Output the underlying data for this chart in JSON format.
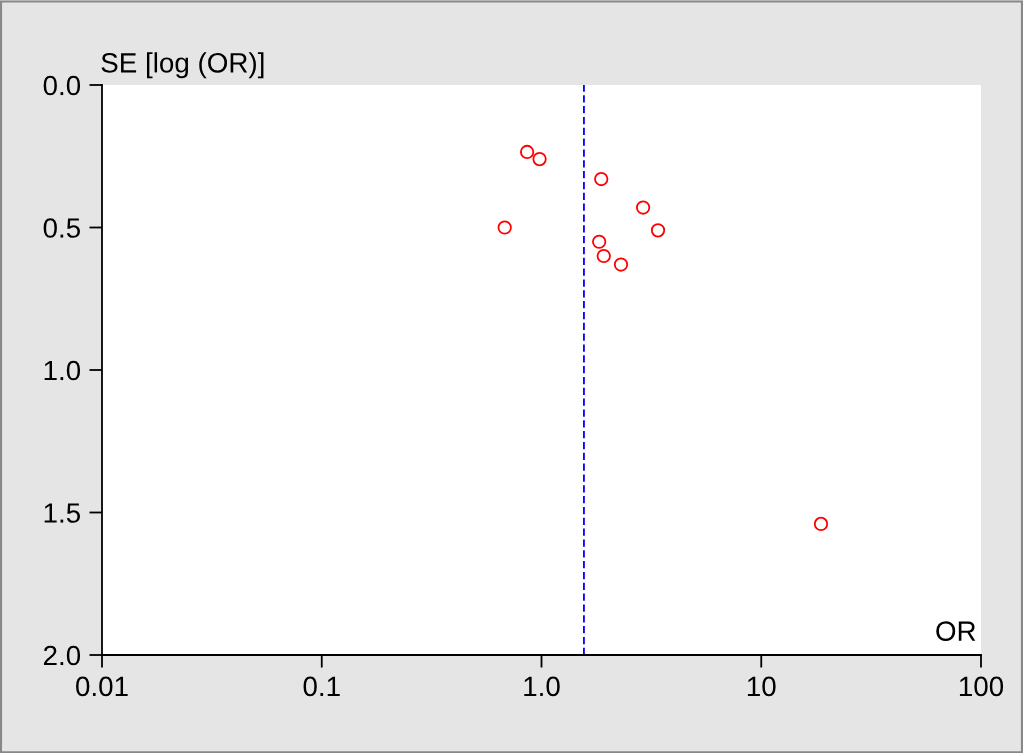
{
  "chart_data": {
    "type": "scatter",
    "xlabel": "OR",
    "ylabel": "SE [log (OR)]",
    "x": [
      0.86,
      0.98,
      1.87,
      2.9,
      0.68,
      3.39,
      1.83,
      1.92,
      2.3,
      18.7
    ],
    "values": [
      0.235,
      0.26,
      0.33,
      0.43,
      0.5,
      0.51,
      0.55,
      0.6,
      0.63,
      1.54
    ],
    "color": "#ff0000",
    "marker": "circle",
    "log": "x",
    "xlim": [
      0.01,
      100
    ],
    "xticks": [
      {
        "value": 0.01,
        "label": "0.01"
      },
      {
        "value": 0.1,
        "label": "0.1"
      },
      {
        "value": 1,
        "label": "1.0"
      },
      {
        "value": 10,
        "label": "10"
      },
      {
        "value": 100,
        "label": "100"
      }
    ],
    "ylim": [
      2.0,
      0.0
    ],
    "yticks": [
      {
        "value": 0.0,
        "label": "0.0"
      },
      {
        "value": 0.5,
        "label": "0.5"
      },
      {
        "value": 1.0,
        "label": "1.0"
      },
      {
        "value": 1.5,
        "label": "1.5"
      },
      {
        "value": 2.0,
        "label": "2.0"
      }
    ],
    "ref_lines": [
      {
        "axis": "x",
        "value": 1.56,
        "color": "#0000ff",
        "line_style": "dashed"
      }
    ],
    "grid": false,
    "legend": false
  }
}
